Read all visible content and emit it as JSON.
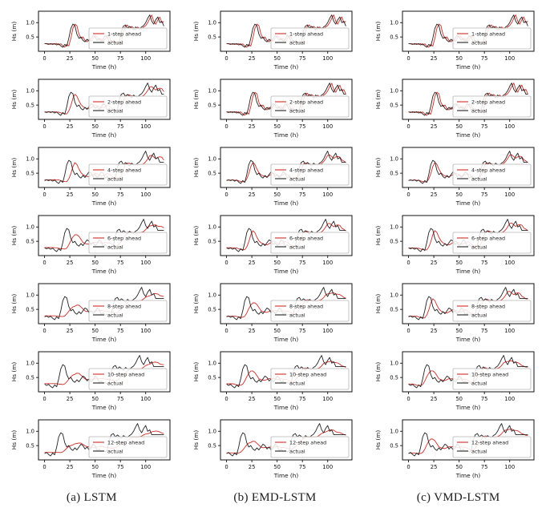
{
  "figure": {
    "captions": [
      {
        "label": "(a) LSTM"
      },
      {
        "label": "(b) EMD-LSTM"
      },
      {
        "label": "(c) VMD-LSTM"
      }
    ]
  },
  "chart_data": {
    "type": "line",
    "layout": {
      "rows": 7,
      "cols": 3,
      "grid": false,
      "legend_position": "center-right-inside"
    },
    "models": [
      "LSTM",
      "EMD-LSTM",
      "VMD-LSTM"
    ],
    "steps_ahead": [
      1,
      2,
      4,
      6,
      8,
      10,
      12
    ],
    "xlabel": "Time (h)",
    "ylabel": "Hs (m)",
    "xticks": [
      0,
      25,
      50,
      75,
      100
    ],
    "yticks": [
      0.5,
      1.0
    ],
    "ytick_labels": [
      "0.5",
      "1.0"
    ],
    "xlim": [
      -6,
      124
    ],
    "ylim": [
      0,
      1.4
    ],
    "legend_actual": "actual",
    "colors": {
      "predicted": "#cf2f28",
      "actual": "#232323",
      "axis": "#111111",
      "legend_border": "#b5b5b5"
    },
    "x": [
      0,
      2,
      4,
      6,
      8,
      10,
      12,
      14,
      16,
      18,
      20,
      22,
      24,
      26,
      28,
      30,
      32,
      34,
      36,
      38,
      40,
      42,
      44,
      46,
      48,
      50,
      52,
      54,
      56,
      58,
      60,
      62,
      64,
      66,
      68,
      70,
      72,
      74,
      76,
      78,
      80,
      82,
      84,
      86,
      88,
      90,
      92,
      94,
      96,
      98,
      100,
      102,
      104,
      106,
      108,
      110,
      112,
      114,
      116,
      118
    ],
    "actual": [
      0.27,
      0.26,
      0.24,
      0.27,
      0.24,
      0.27,
      0.22,
      0.26,
      0.19,
      0.14,
      0.24,
      0.18,
      0.45,
      0.8,
      0.95,
      0.9,
      0.6,
      0.45,
      0.5,
      0.38,
      0.33,
      0.42,
      0.35,
      0.45,
      0.55,
      0.5,
      0.38,
      0.45,
      0.35,
      0.42,
      0.55,
      0.5,
      0.32,
      0.38,
      0.3,
      0.33,
      0.28,
      0.33,
      0.7,
      0.88,
      0.92,
      0.8,
      0.87,
      0.82,
      0.75,
      0.85,
      0.8,
      0.78,
      0.85,
      0.9,
      1.0,
      1.15,
      1.27,
      1.05,
      0.95,
      1.1,
      1.2,
      1.0,
      1.05,
      0.88
    ],
    "panels": [
      {
        "row": 0,
        "col": 0,
        "model": "LSTM",
        "step": 1,
        "legend": "1-step ahead",
        "shift_h": 0,
        "pred_lag_h": 2,
        "smooth": 0,
        "amp": 0.99
      },
      {
        "row": 0,
        "col": 1,
        "model": "EMD-LSTM",
        "step": 1,
        "legend": "1-step ahead",
        "shift_h": 0,
        "pred_lag_h": 1,
        "smooth": 0,
        "amp": 1.0
      },
      {
        "row": 0,
        "col": 2,
        "model": "VMD-LSTM",
        "step": 1,
        "legend": "1-step ahead",
        "shift_h": 0,
        "pred_lag_h": 1,
        "smooth": 0,
        "amp": 1.0
      },
      {
        "row": 1,
        "col": 0,
        "model": "LSTM",
        "step": 2,
        "legend": "2-step ahead",
        "shift_h": 2,
        "pred_lag_h": 3,
        "smooth": 1,
        "amp": 0.98
      },
      {
        "row": 1,
        "col": 1,
        "model": "EMD-LSTM",
        "step": 2,
        "legend": "2-step ahead",
        "shift_h": 2,
        "pred_lag_h": 1,
        "smooth": 0,
        "amp": 0.99
      },
      {
        "row": 1,
        "col": 2,
        "model": "VMD-LSTM",
        "step": 2,
        "legend": "2-step ahead",
        "shift_h": 2,
        "pred_lag_h": 1,
        "smooth": 0,
        "amp": 1.0
      },
      {
        "row": 2,
        "col": 0,
        "model": "LSTM",
        "step": 4,
        "legend": "4-step ahead",
        "shift_h": 4,
        "pred_lag_h": 5,
        "smooth": 1,
        "amp": 0.95
      },
      {
        "row": 2,
        "col": 1,
        "model": "EMD-LSTM",
        "step": 4,
        "legend": "4-step ahead",
        "shift_h": 4,
        "pred_lag_h": 2,
        "smooth": 1,
        "amp": 0.97
      },
      {
        "row": 2,
        "col": 2,
        "model": "VMD-LSTM",
        "step": 4,
        "legend": "4-step ahead",
        "shift_h": 4,
        "pred_lag_h": 2,
        "smooth": 1,
        "amp": 0.98
      },
      {
        "row": 3,
        "col": 0,
        "model": "LSTM",
        "step": 6,
        "legend": "6-step ahead",
        "shift_h": 6,
        "pred_lag_h": 7,
        "smooth": 2,
        "amp": 0.93
      },
      {
        "row": 3,
        "col": 1,
        "model": "EMD-LSTM",
        "step": 6,
        "legend": "6-step ahead",
        "shift_h": 6,
        "pred_lag_h": 4,
        "smooth": 1,
        "amp": 0.95
      },
      {
        "row": 3,
        "col": 2,
        "model": "VMD-LSTM",
        "step": 6,
        "legend": "6-step ahead",
        "shift_h": 6,
        "pred_lag_h": 3,
        "smooth": 1,
        "amp": 0.97
      },
      {
        "row": 4,
        "col": 0,
        "model": "LSTM",
        "step": 8,
        "legend": "8-step ahead",
        "shift_h": 8,
        "pred_lag_h": 9,
        "smooth": 3,
        "amp": 0.9
      },
      {
        "row": 4,
        "col": 1,
        "model": "EMD-LSTM",
        "step": 8,
        "legend": "8-step ahead",
        "shift_h": 8,
        "pred_lag_h": 5,
        "smooth": 2,
        "amp": 0.94
      },
      {
        "row": 4,
        "col": 2,
        "model": "VMD-LSTM",
        "step": 8,
        "legend": "8-step ahead",
        "shift_h": 8,
        "pred_lag_h": 4,
        "smooth": 1,
        "amp": 0.96
      },
      {
        "row": 5,
        "col": 0,
        "model": "LSTM",
        "step": 10,
        "legend": "10-step ahead",
        "shift_h": 10,
        "pred_lag_h": 11,
        "smooth": 3,
        "amp": 0.88
      },
      {
        "row": 5,
        "col": 1,
        "model": "EMD-LSTM",
        "step": 10,
        "legend": "10-step ahead",
        "shift_h": 10,
        "pred_lag_h": 6,
        "smooth": 2,
        "amp": 0.92
      },
      {
        "row": 5,
        "col": 2,
        "model": "VMD-LSTM",
        "step": 10,
        "legend": "10-step ahead",
        "shift_h": 10,
        "pred_lag_h": 4,
        "smooth": 2,
        "amp": 0.95
      },
      {
        "row": 6,
        "col": 0,
        "model": "LSTM",
        "step": 12,
        "legend": "12-step ahead",
        "shift_h": 12,
        "pred_lag_h": 13,
        "smooth": 4,
        "amp": 0.86
      },
      {
        "row": 6,
        "col": 1,
        "model": "EMD-LSTM",
        "step": 12,
        "legend": "12-step ahead",
        "shift_h": 12,
        "pred_lag_h": 7,
        "smooth": 3,
        "amp": 0.9
      },
      {
        "row": 6,
        "col": 2,
        "model": "VMD-LSTM",
        "step": 12,
        "legend": "12-step ahead",
        "shift_h": 12,
        "pred_lag_h": 5,
        "smooth": 2,
        "amp": 0.94
      }
    ]
  }
}
